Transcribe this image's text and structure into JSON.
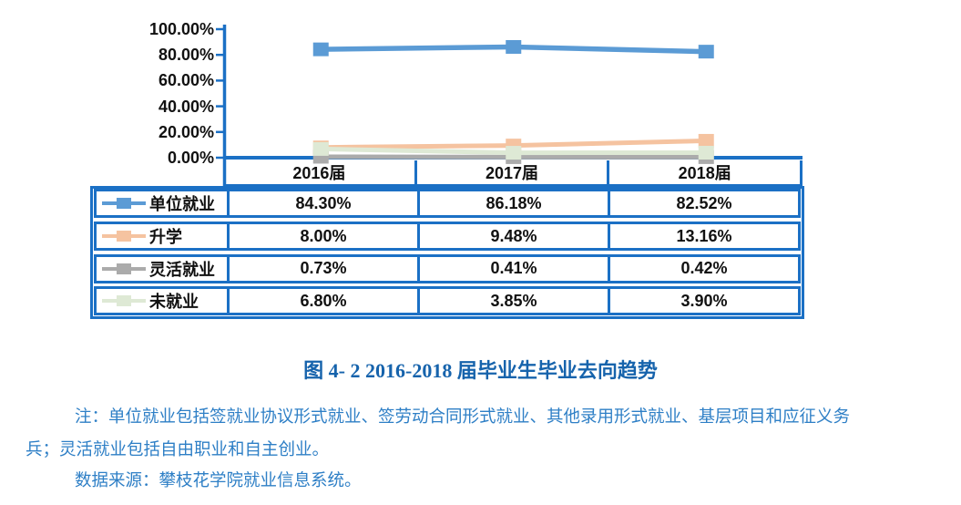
{
  "colors": {
    "table_border": "#1B70C5",
    "axis": "#1B70C5",
    "caption_color": "#1663AC",
    "note_color": "#2E7FC6",
    "text": "#111111"
  },
  "chart_data": {
    "type": "line",
    "title": "图 4- 2  2016-2018 届毕业生毕业去向趋势",
    "categories": [
      "2016届",
      "2017届",
      "2018届"
    ],
    "series": [
      {
        "name": "单位就业",
        "color": "#5B9BD5",
        "values": [
          84.3,
          86.18,
          82.52
        ],
        "labels": [
          "84.30%",
          "86.18%",
          "82.52%"
        ]
      },
      {
        "name": "升学",
        "color": "#F5C3A0",
        "values": [
          8.0,
          9.48,
          13.16
        ],
        "labels": [
          "8.00%",
          "9.48%",
          "13.16%"
        ]
      },
      {
        "name": "灵活就业",
        "color": "#ABABAB",
        "values": [
          0.73,
          0.41,
          0.42
        ],
        "labels": [
          "0.73%",
          "0.41%",
          "0.42%"
        ]
      },
      {
        "name": "未就业",
        "color": "#DEE9D5",
        "values": [
          6.8,
          3.85,
          3.9
        ],
        "labels": [
          "6.80%",
          "3.85%",
          "3.90%"
        ]
      }
    ],
    "y_axis": {
      "tick_labels": [
        "100.00%",
        "80.00%",
        "60.00%",
        "40.00%",
        "20.00%",
        "0.00%"
      ],
      "tick_values": [
        100,
        80,
        60,
        40,
        20,
        0
      ],
      "min": 0,
      "max": 100,
      "step": 20
    },
    "grid": false,
    "legend_position": "table-left",
    "data_table_shown": true
  },
  "caption": "图 4- 2  2016-2018 届毕业生毕业去向趋势",
  "notes": {
    "line1": "注：单位就业包括签就业协议形式就业、签劳动合同形式就业、其他录用形式就业、基层项目和应征义务",
    "line2": "兵；灵活就业包括自由职业和自主创业。",
    "line3": "数据来源：攀枝花学院就业信息系统。"
  }
}
